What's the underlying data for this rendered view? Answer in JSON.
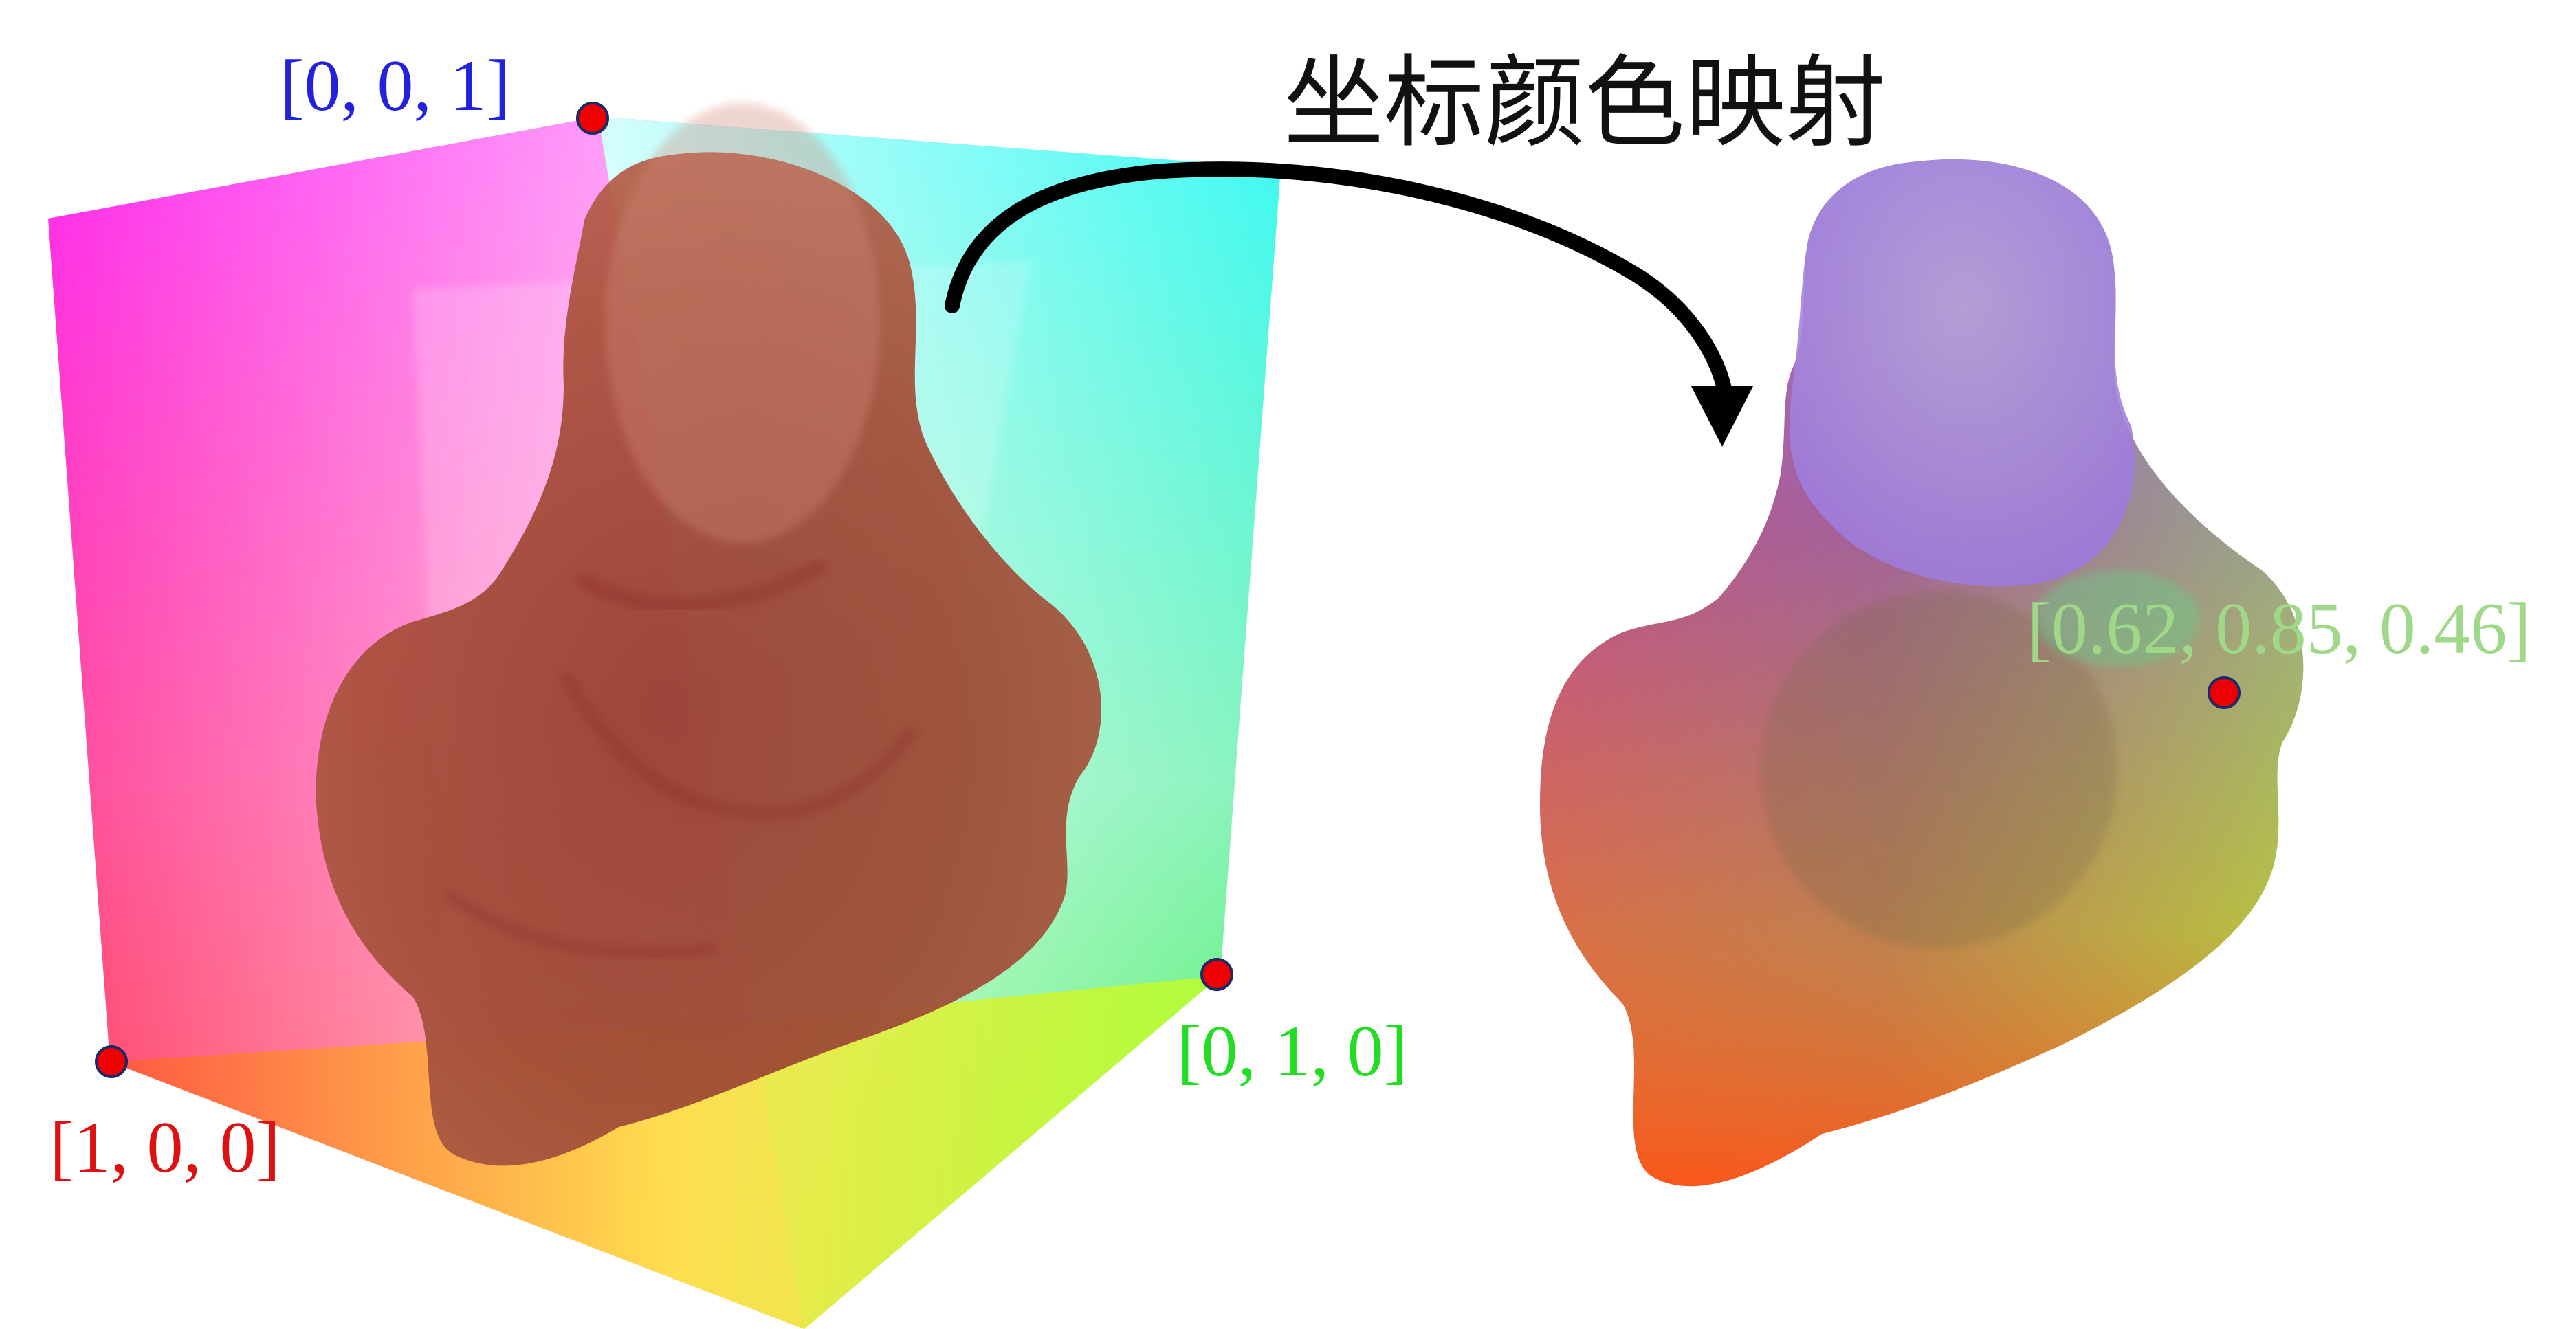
{
  "title": "坐标颜色映射",
  "cube_corners": [
    {
      "id": "z",
      "label": "[0, 0, 1]",
      "color": "#2222dd"
    },
    {
      "id": "y",
      "label": "[0, 1, 0]",
      "color": "#22dd22"
    },
    {
      "id": "x",
      "label": "[1, 0, 0]",
      "color": "#dd1111"
    }
  ],
  "sample_point": {
    "label": "[0.62, 0.85, 0.46]",
    "color": "#9fd889"
  },
  "colors": {
    "marker_fill": "#ee0000",
    "marker_stroke": "#1a2a66",
    "arrow": "#000000",
    "mesh_tint": "#b5533e"
  }
}
